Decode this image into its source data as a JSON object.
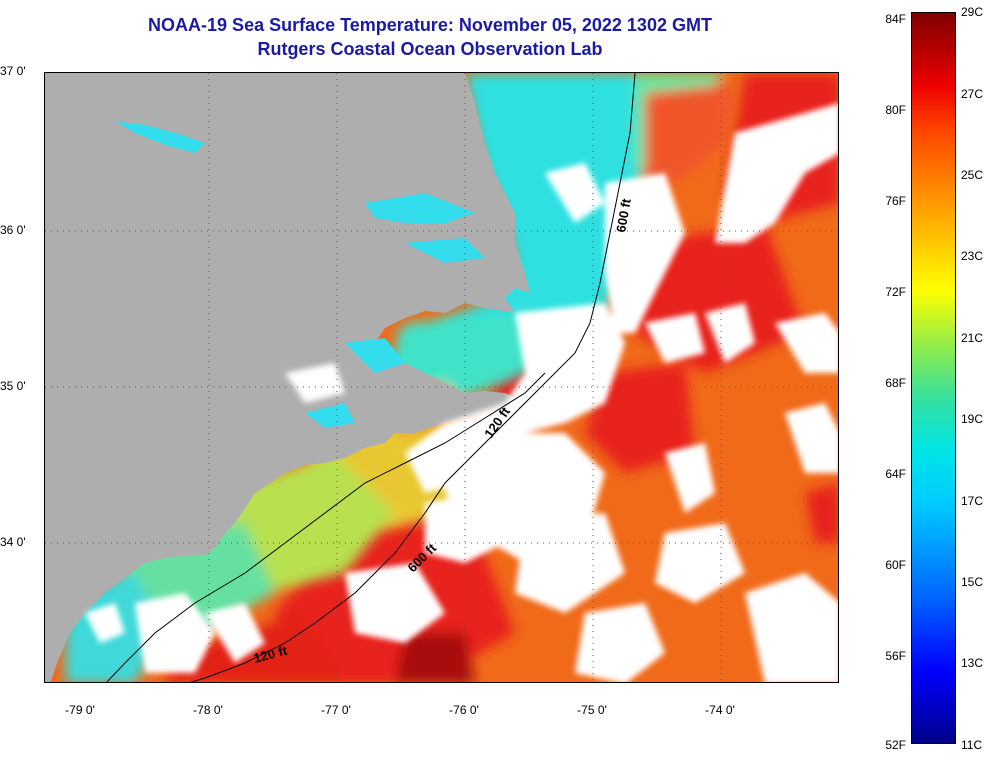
{
  "title": {
    "line1": "NOAA-19 Sea Surface Temperature:  November 05, 2022 1302 GMT",
    "line2": "Rutgers Coastal Ocean Observation Lab"
  },
  "map": {
    "lat_labels": [
      {
        "text": "37 0'",
        "lat": 37.0
      },
      {
        "text": "36 0'",
        "lat": 36.0
      },
      {
        "text": "35 0'",
        "lat": 35.0
      },
      {
        "text": "34 0'",
        "lat": 34.0
      }
    ],
    "lon_labels": [
      {
        "text": "-79 0'",
        "lon": -79.0
      },
      {
        "text": "-78 0'",
        "lon": -78.0
      },
      {
        "text": "-77 0'",
        "lon": -77.0
      },
      {
        "text": "-76 0'",
        "lon": -76.0
      },
      {
        "text": "-75 0'",
        "lon": -75.0
      },
      {
        "text": "-74 0'",
        "lon": -74.0
      }
    ],
    "extent": {
      "lon_min": -79.3,
      "lon_max": -73.1,
      "lat_min": 33.1,
      "lat_max": 37.0
    },
    "contours": [
      {
        "label": "120 ft"
      },
      {
        "label": "600 ft"
      },
      {
        "label": "120 ft"
      },
      {
        "label": "600 ft"
      }
    ],
    "colors": {
      "land": "#aeaeae",
      "cloud": "#ffffff"
    }
  },
  "colorbar": {
    "fahrenheit": [
      {
        "text": "84F",
        "value": 84
      },
      {
        "text": "80F",
        "value": 80
      },
      {
        "text": "76F",
        "value": 76
      },
      {
        "text": "72F",
        "value": 72
      },
      {
        "text": "68F",
        "value": 68
      },
      {
        "text": "64F",
        "value": 64
      },
      {
        "text": "60F",
        "value": 60
      },
      {
        "text": "56F",
        "value": 56
      },
      {
        "text": "52F",
        "value": 52
      }
    ],
    "celsius": [
      {
        "text": "29C",
        "value": 29
      },
      {
        "text": "27C",
        "value": 27
      },
      {
        "text": "25C",
        "value": 25
      },
      {
        "text": "23C",
        "value": 23
      },
      {
        "text": "21C",
        "value": 21
      },
      {
        "text": "19C",
        "value": 19
      },
      {
        "text": "17C",
        "value": 17
      },
      {
        "text": "15C",
        "value": 15
      },
      {
        "text": "13C",
        "value": 13
      },
      {
        "text": "11C",
        "value": 11
      }
    ],
    "range_f": [
      52,
      84
    ],
    "range_c": [
      11,
      29
    ]
  }
}
